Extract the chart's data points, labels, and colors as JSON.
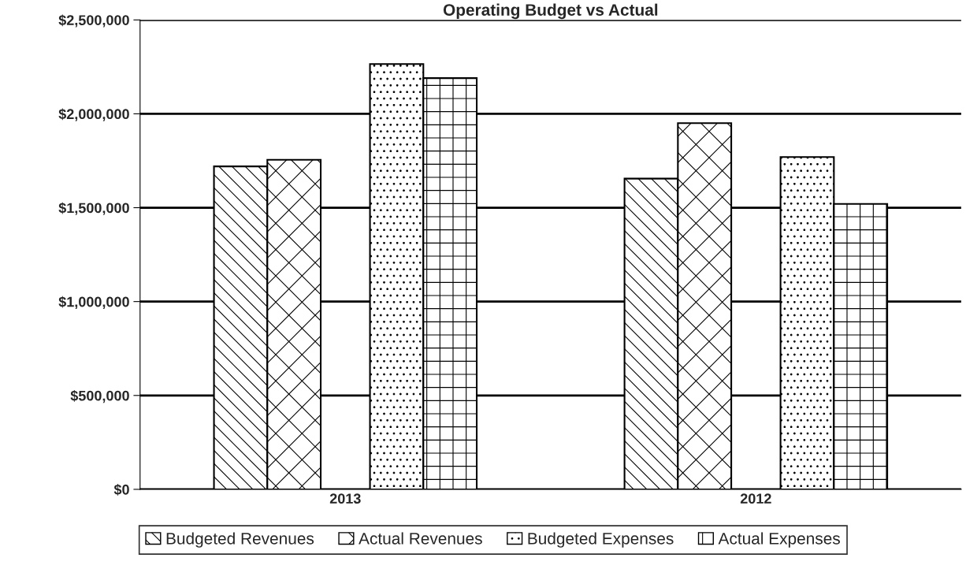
{
  "chart_data": {
    "type": "bar",
    "title": "Operating Budget vs Actual",
    "categories": [
      "2013",
      "2012"
    ],
    "series": [
      {
        "name": "Budgeted Revenues",
        "color": "#000000",
        "values": [
          1720000,
          1655000
        ]
      },
      {
        "name": "Actual Revenues",
        "color": "#000000",
        "values": [
          1755000,
          1950000
        ]
      },
      {
        "name": "Budgeted Expenses",
        "color": "#000000",
        "values": [
          2265000,
          1770000
        ]
      },
      {
        "name": "Actual Expenses",
        "color": "#000000",
        "values": [
          2190000,
          1520000
        ]
      }
    ],
    "ylim": [
      0,
      2500000
    ],
    "yticks": [
      {
        "value": 0,
        "label": "$0"
      },
      {
        "value": 500000,
        "label": "$500,000"
      },
      {
        "value": 1000000,
        "label": "$1,000,000"
      },
      {
        "value": 1500000,
        "label": "$1,500,000"
      },
      {
        "value": 2000000,
        "label": "$2,000,000"
      },
      {
        "value": 2500000,
        "label": "$2,500,000"
      }
    ],
    "grid": "y",
    "legend": "bottom"
  }
}
